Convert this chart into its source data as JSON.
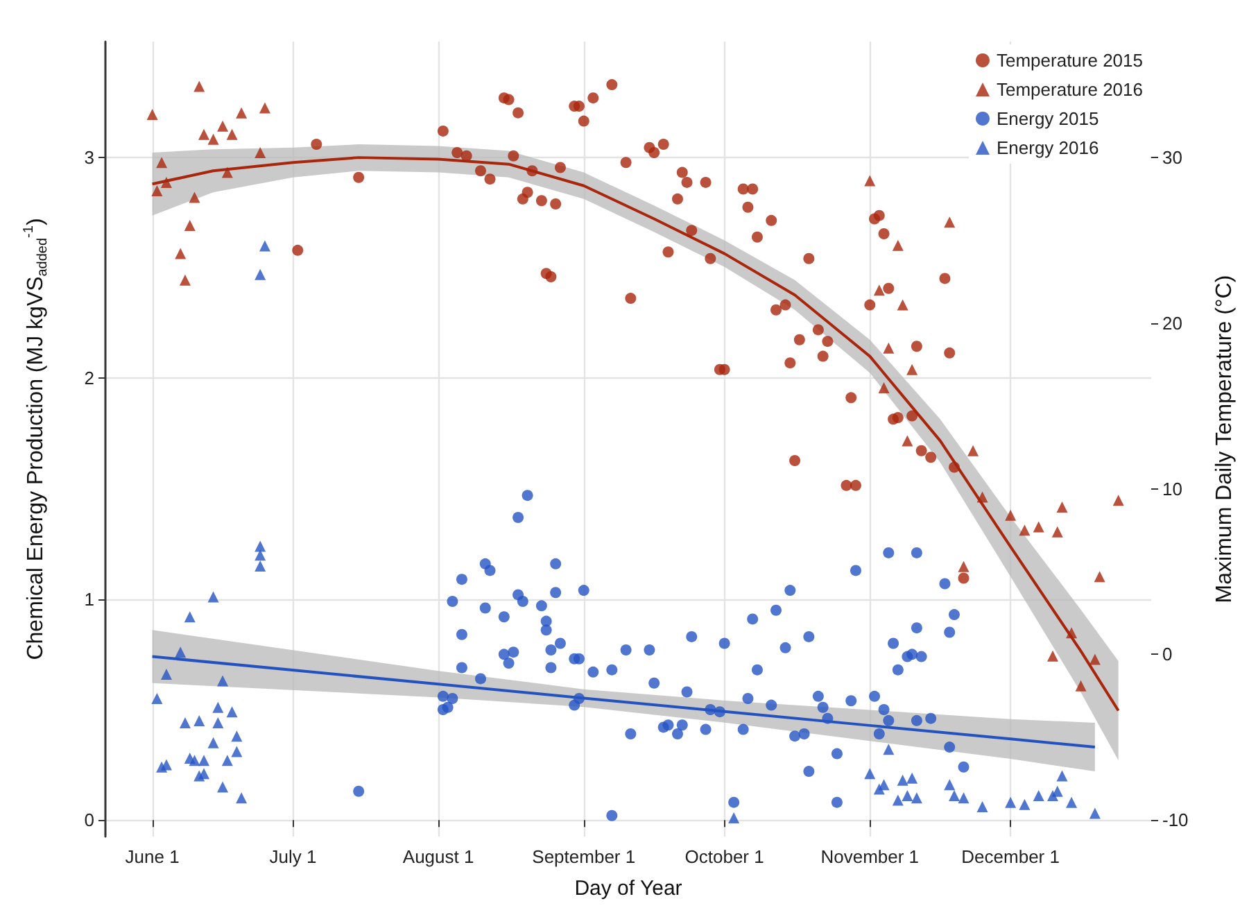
{
  "chart_data": {
    "type": "scatter",
    "xlabel": "Day of Year",
    "ylabel": "Chemical Energy Production (MJ kgVS$_{added}$$^{-1}$)",
    "y2label": "Maximum Daily Temperature (°C)",
    "xlim": [
      "--05-22",
      "--12-31"
    ],
    "xticks": [
      {
        "value": "--06-01",
        "label": "June 1"
      },
      {
        "value": "--07-01",
        "label": "July 1"
      },
      {
        "value": "--08-01",
        "label": "August 1"
      },
      {
        "value": "--09-01",
        "label": "September 1"
      },
      {
        "value": "--10-01",
        "label": "October 1"
      },
      {
        "value": "--11-01",
        "label": "November 1"
      },
      {
        "value": "--12-01",
        "label": "December 1"
      }
    ],
    "ylim": [
      -0.075,
      3.525
    ],
    "yticks": [
      0,
      1,
      2,
      3
    ],
    "y2lim": [
      -11,
      37
    ],
    "y2ticks": [
      -10,
      0,
      10,
      20,
      30
    ],
    "grid": true,
    "legend": "top right",
    "series": [
      {
        "name": "Temperature 2015",
        "marker": "circle",
        "axis": "y2",
        "color": "#a8260b",
        "x": [
          "--07-02",
          "--07-06",
          "--07-15",
          "--08-02",
          "--08-05",
          "--08-07",
          "--08-10",
          "--08-12",
          "--08-15",
          "--08-16",
          "--08-18",
          "--08-17",
          "--08-20",
          "--08-19",
          "--08-21",
          "--08-23",
          "--08-24",
          "--08-25",
          "--08-26",
          "--08-27",
          "--08-30",
          "--08-31",
          "--09-01",
          "--09-03",
          "--09-07",
          "--09-10",
          "--09-11",
          "--09-15",
          "--09-16",
          "--09-18",
          "--09-19",
          "--09-21",
          "--09-22",
          "--09-23",
          "--09-24",
          "--09-27",
          "--09-28",
          "--09-30",
          "--10-01",
          "--10-05",
          "--10-06",
          "--10-07",
          "--10-08",
          "--10-11",
          "--10-12",
          "--10-14",
          "--10-15",
          "--10-16",
          "--10-17",
          "--10-19",
          "--10-21",
          "--10-22",
          "--10-23",
          "--10-27",
          "--10-28",
          "--10-29",
          "--11-01",
          "--11-02",
          "--11-03",
          "--11-04",
          "--11-05",
          "--11-06",
          "--11-07",
          "--11-10",
          "--11-11",
          "--11-12",
          "--11-14",
          "--11-17",
          "--11-18",
          "--11-19",
          "--11-21"
        ],
        "values": [
          24.4,
          30.8,
          28.8,
          31.6,
          30.3,
          30.1,
          29.2,
          28.7,
          33.6,
          33.5,
          32.7,
          30.1,
          27.9,
          27.5,
          29.2,
          27.4,
          23.0,
          22.8,
          27.2,
          29.4,
          33.1,
          33.1,
          32.2,
          33.6,
          34.4,
          29.7,
          21.5,
          30.6,
          30.3,
          30.8,
          24.3,
          27.5,
          29.1,
          28.5,
          25.6,
          28.5,
          23.9,
          17.2,
          17.2,
          28.1,
          27.0,
          28.1,
          25.2,
          26.2,
          20.8,
          21.1,
          17.6,
          11.7,
          19.0,
          23.9,
          19.6,
          18.0,
          18.9,
          10.2,
          15.5,
          10.2,
          21.1,
          26.3,
          26.5,
          25.4,
          22.1,
          14.2,
          14.3,
          14.4,
          18.6,
          12.3,
          11.9,
          22.7,
          18.2,
          11.3,
          4.6
        ]
      },
      {
        "name": "Temperature 2016",
        "marker": "triangle",
        "axis": "y2",
        "color": "#a8260b",
        "x": [
          "--06-01",
          "--06-11",
          "--06-03",
          "--06-04",
          "--06-02",
          "--06-12",
          "--06-14",
          "--06-16",
          "--06-18",
          "--06-20",
          "--06-25",
          "--06-17",
          "--06-10",
          "--06-09",
          "--06-07",
          "--06-08",
          "--06-24",
          "--11-01",
          "--11-18",
          "--11-07",
          "--11-03",
          "--11-08",
          "--11-05",
          "--11-10",
          "--11-04",
          "--11-09",
          "--11-23",
          "--11-25",
          "--12-01",
          "--12-04",
          "--12-07",
          "--12-11",
          "--12-12",
          "--12-24",
          "--12-20",
          "--11-21",
          "--12-14",
          "--12-10",
          "--12-19",
          "--12-16"
        ],
        "values": [
          32.6,
          34.3,
          29.7,
          28.5,
          28.0,
          31.4,
          31.1,
          31.9,
          31.4,
          32.7,
          33.0,
          29.1,
          27.6,
          25.9,
          24.2,
          22.6,
          30.3,
          28.6,
          26.1,
          24.7,
          22.0,
          21.1,
          18.5,
          17.2,
          16.1,
          12.9,
          12.3,
          9.5,
          8.4,
          7.5,
          7.7,
          7.4,
          8.9,
          9.3,
          4.7,
          5.3,
          1.3,
          -0.1,
          -0.3,
          -1.9
        ]
      },
      {
        "name": "Energy 2015",
        "marker": "circle",
        "color": "#2454c4",
        "x": [
          "--07-15",
          "--08-02",
          "--08-02",
          "--08-03",
          "--08-04",
          "--08-04",
          "--08-06",
          "--08-06",
          "--08-06",
          "--08-10",
          "--08-11",
          "--08-12",
          "--08-11",
          "--08-15",
          "--08-15",
          "--08-17",
          "--08-16",
          "--08-18",
          "--08-20",
          "--08-18",
          "--08-19",
          "--08-23",
          "--08-24",
          "--08-24",
          "--08-26",
          "--08-26",
          "--08-25",
          "--08-25",
          "--08-27",
          "--08-30",
          "--08-31",
          "--08-30",
          "--08-31",
          "--09-01",
          "--09-03",
          "--09-07",
          "--09-07",
          "--09-10",
          "--09-11",
          "--09-15",
          "--09-16",
          "--09-18",
          "--09-19",
          "--09-21",
          "--09-22",
          "--09-23",
          "--09-24",
          "--09-27",
          "--09-28",
          "--09-30",
          "--10-01",
          "--10-03",
          "--10-05",
          "--10-06",
          "--10-07",
          "--10-08",
          "--10-11",
          "--10-12",
          "--10-14",
          "--10-15",
          "--10-16",
          "--10-18",
          "--10-19",
          "--10-19",
          "--10-21",
          "--10-22",
          "--10-23",
          "--10-25",
          "--10-25",
          "--10-28",
          "--10-29",
          "--11-02",
          "--11-03",
          "--11-04",
          "--11-05",
          "--11-05",
          "--11-06",
          "--11-07",
          "--11-09",
          "--11-10",
          "--11-11",
          "--11-11",
          "--11-11",
          "--11-12",
          "--11-14",
          "--11-17",
          "--11-18",
          "--11-19",
          "--11-18",
          "--11-21"
        ],
        "values": [
          0.13,
          0.56,
          0.5,
          0.51,
          0.55,
          0.99,
          1.09,
          0.84,
          0.69,
          0.64,
          1.16,
          1.13,
          0.96,
          0.92,
          0.75,
          0.76,
          0.71,
          1.37,
          1.47,
          1.02,
          0.99,
          0.97,
          0.9,
          0.86,
          1.16,
          1.03,
          0.77,
          0.69,
          0.8,
          0.73,
          0.73,
          0.52,
          0.55,
          1.04,
          0.67,
          0.68,
          0.02,
          0.77,
          0.39,
          0.77,
          0.62,
          0.42,
          0.43,
          0.39,
          0.43,
          0.58,
          0.83,
          0.41,
          0.5,
          0.49,
          0.8,
          0.08,
          0.41,
          0.55,
          0.91,
          0.68,
          0.52,
          0.95,
          0.78,
          1.04,
          0.38,
          0.39,
          0.83,
          0.22,
          0.56,
          0.51,
          0.46,
          0.3,
          0.08,
          0.54,
          1.13,
          0.56,
          0.39,
          0.5,
          0.45,
          1.21,
          0.8,
          0.68,
          0.74,
          0.75,
          0.87,
          1.21,
          0.45,
          0.74,
          0.46,
          1.07,
          0.85,
          0.93,
          0.33,
          0.24
        ]
      },
      {
        "name": "Energy 2016",
        "marker": "triangle",
        "color": "#2454c4",
        "x": [
          "--06-02",
          "--06-04",
          "--06-03",
          "--06-04",
          "--06-07",
          "--06-09",
          "--06-14",
          "--06-16",
          "--06-08",
          "--06-11",
          "--06-15",
          "--06-15",
          "--06-18",
          "--06-19",
          "--06-19",
          "--06-14",
          "--06-09",
          "--06-10",
          "--06-12",
          "--06-17",
          "--06-11",
          "--06-12",
          "--06-16",
          "--06-20",
          "--06-24",
          "--06-24",
          "--06-24",
          "--06-25",
          "--06-24",
          "--10-03",
          "--11-01",
          "--11-03",
          "--11-04",
          "--11-05",
          "--11-07",
          "--11-08",
          "--11-09",
          "--11-10",
          "--11-11",
          "--11-18",
          "--11-19",
          "--11-21",
          "--11-25",
          "--12-01",
          "--12-04",
          "--12-07",
          "--12-10",
          "--12-11",
          "--12-12",
          "--12-14",
          "--12-19"
        ],
        "values": [
          0.55,
          0.66,
          0.24,
          0.25,
          0.76,
          0.92,
          1.01,
          0.63,
          0.44,
          0.45,
          0.51,
          0.44,
          0.49,
          0.38,
          0.31,
          0.35,
          0.28,
          0.27,
          0.27,
          0.27,
          0.2,
          0.21,
          0.15,
          0.1,
          1.15,
          1.2,
          1.24,
          2.6,
          2.47,
          0.01,
          0.21,
          0.14,
          0.16,
          0.32,
          0.09,
          0.18,
          0.11,
          0.19,
          0.1,
          0.16,
          0.11,
          0.1,
          0.06,
          0.08,
          0.07,
          0.11,
          0.11,
          0.13,
          0.2,
          0.08,
          0.03
        ]
      },
      {
        "type": "line",
        "marker": "none",
        "line_style": "solid",
        "axis": "y2",
        "color": "#a8260b",
        "x": [
          "--06-01",
          "--06-14",
          "--07-01",
          "--07-15",
          "--08-01",
          "--08-16",
          "--09-01",
          "--09-16",
          "--10-01",
          "--10-16",
          "--11-01",
          "--11-16",
          "--12-01",
          "--12-16",
          "--12-24"
        ],
        "values": [
          28.4,
          29.2,
          29.7,
          30.0,
          29.9,
          29.6,
          28.3,
          26.3,
          24.2,
          21.7,
          18.0,
          12.9,
          6.5,
          0.2,
          -3.4
        ],
        "lower": [
          26.5,
          27.9,
          28.8,
          29.2,
          29.1,
          28.8,
          27.5,
          25.5,
          23.4,
          20.8,
          17.0,
          11.6,
          4.7,
          -2.3,
          -6.4
        ],
        "upper": [
          30.3,
          30.5,
          30.6,
          30.8,
          30.7,
          30.4,
          29.1,
          27.1,
          25.0,
          22.6,
          19.0,
          14.2,
          8.3,
          2.7,
          -0.4
        ]
      },
      {
        "type": "line",
        "marker": "none",
        "line_style": "solid",
        "color": "#2352c0",
        "x": [
          "--06-01",
          "--08-01",
          "--09-01",
          "--10-01",
          "--11-01",
          "--12-01",
          "--12-19"
        ],
        "values": [
          0.74,
          0.615,
          0.552,
          0.491,
          0.428,
          0.367,
          0.33
        ],
        "lower": [
          0.62,
          0.555,
          0.512,
          0.441,
          0.358,
          0.277,
          0.22
        ],
        "upper": [
          0.86,
          0.675,
          0.592,
          0.541,
          0.498,
          0.457,
          0.44
        ]
      }
    ]
  }
}
